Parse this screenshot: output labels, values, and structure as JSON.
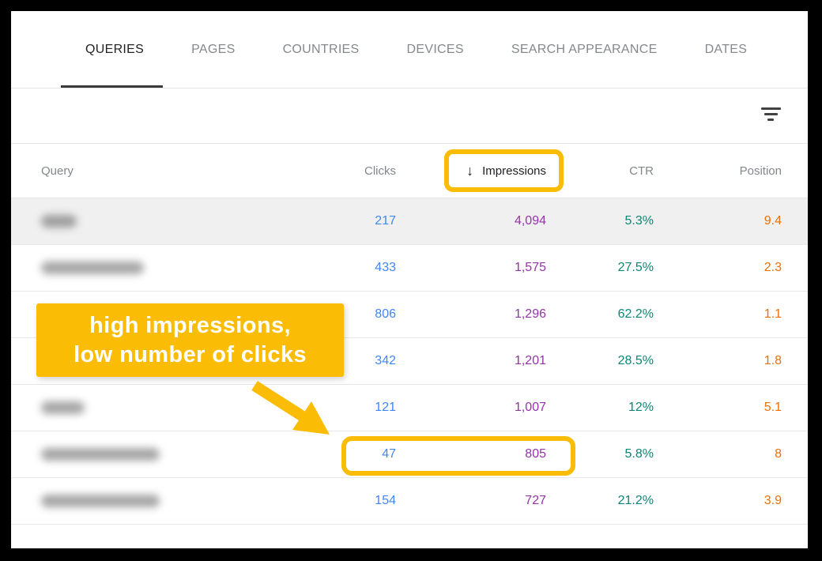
{
  "tabs": [
    {
      "label": "QUERIES",
      "active": true
    },
    {
      "label": "PAGES",
      "active": false
    },
    {
      "label": "COUNTRIES",
      "active": false
    },
    {
      "label": "DEVICES",
      "active": false
    },
    {
      "label": "SEARCH APPEARANCE",
      "active": false
    },
    {
      "label": "DATES",
      "active": false
    }
  ],
  "toolbar": {
    "filter_icon": "filter-icon"
  },
  "table": {
    "columns": {
      "query": "Query",
      "clicks": "Clicks",
      "impressions": "Impressions",
      "ctr": "CTR",
      "position": "Position"
    },
    "sort": {
      "column": "Impressions",
      "direction": "desc",
      "arrow_glyph": "↓"
    },
    "rows": [
      {
        "query_redacted": true,
        "redaction_width": 45,
        "clicks": "217",
        "impressions": "4,094",
        "ctr": "5.3%",
        "position": "9.4",
        "shaded": true
      },
      {
        "query_redacted": true,
        "redaction_width": 130,
        "clicks": "433",
        "impressions": "1,575",
        "ctr": "27.5%",
        "position": "2.3",
        "shaded": false
      },
      {
        "query_redacted": false,
        "redaction_width": 0,
        "clicks": "806",
        "impressions": "1,296",
        "ctr": "62.2%",
        "position": "1.1",
        "shaded": false
      },
      {
        "query_redacted": false,
        "redaction_width": 0,
        "clicks": "342",
        "impressions": "1,201",
        "ctr": "28.5%",
        "position": "1.8",
        "shaded": false
      },
      {
        "query_redacted": true,
        "redaction_width": 55,
        "clicks": "121",
        "impressions": "1,007",
        "ctr": "12%",
        "position": "5.1",
        "shaded": false
      },
      {
        "query_redacted": true,
        "redaction_width": 150,
        "clicks": "47",
        "impressions": "805",
        "ctr": "5.8%",
        "position": "8",
        "shaded": false
      },
      {
        "query_redacted": true,
        "redaction_width": 150,
        "clicks": "154",
        "impressions": "727",
        "ctr": "21.2%",
        "position": "3.9",
        "shaded": false
      }
    ]
  },
  "annotation": {
    "line1": "high impressions,",
    "line2": "low number of clicks"
  },
  "colors": {
    "highlight_yellow": "#FBBC05",
    "clicks_blue": "#4285F4",
    "impressions_purple": "#9334A9",
    "ctr_teal": "#0D8573",
    "position_orange": "#E8710A",
    "shaded_row_bg": "#f0f0f0",
    "frame_black": "#000000"
  }
}
